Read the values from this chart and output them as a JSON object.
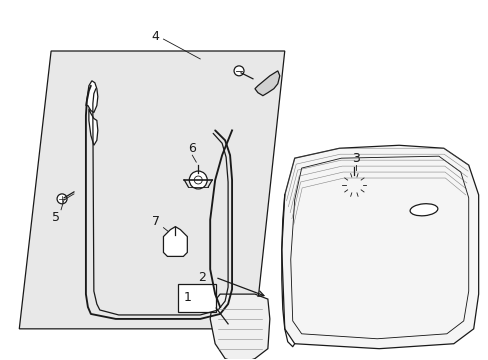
{
  "background_color": "#ffffff",
  "panel_fill": "#e8e8e8",
  "line_color": "#1a1a1a",
  "fig_width": 4.89,
  "fig_height": 3.6,
  "label_fontsize": 9
}
